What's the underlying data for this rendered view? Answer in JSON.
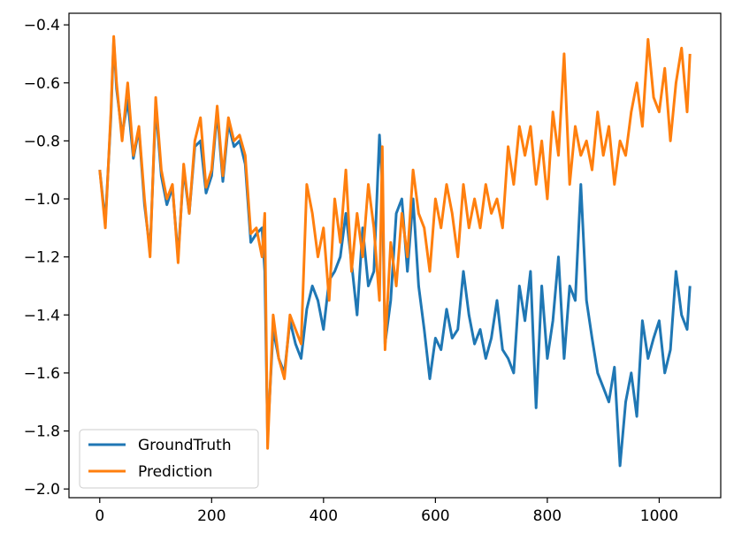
{
  "chart_data": {
    "type": "line",
    "title": "",
    "xlabel": "",
    "ylabel": "",
    "xlim": [
      -55,
      1110
    ],
    "ylim": [
      -2.03,
      -0.36
    ],
    "xticks": [
      0,
      200,
      400,
      600,
      800,
      1000
    ],
    "yticks": [
      -2.0,
      -1.8,
      -1.6,
      -1.4,
      -1.2,
      -1.0,
      -0.8,
      -0.6,
      -0.4
    ],
    "xtick_labels": [
      "0",
      "200",
      "400",
      "600",
      "800",
      "1000"
    ],
    "ytick_labels": [
      "−2.0",
      "−1.8",
      "−1.6",
      "−1.4",
      "−1.2",
      "−1.0",
      "−0.8",
      "−0.6",
      "−0.4"
    ],
    "grid": false,
    "legend_position": "lower-left",
    "series": [
      {
        "name": "GroundTruth",
        "color": "#1f77b4",
        "x": [
          0,
          10,
          20,
          25,
          30,
          40,
          50,
          60,
          70,
          80,
          90,
          100,
          110,
          120,
          130,
          140,
          150,
          160,
          170,
          180,
          190,
          200,
          210,
          220,
          230,
          240,
          250,
          260,
          270,
          280,
          290,
          295,
          300,
          310,
          320,
          330,
          340,
          350,
          360,
          370,
          380,
          390,
          400,
          410,
          420,
          430,
          440,
          450,
          460,
          470,
          480,
          490,
          500,
          505,
          510,
          520,
          530,
          540,
          550,
          560,
          570,
          580,
          590,
          600,
          610,
          620,
          630,
          640,
          650,
          660,
          670,
          680,
          690,
          700,
          710,
          720,
          730,
          740,
          750,
          760,
          770,
          780,
          790,
          800,
          810,
          820,
          830,
          840,
          850,
          860,
          870,
          880,
          890,
          900,
          910,
          920,
          930,
          940,
          950,
          960,
          970,
          980,
          990,
          1000,
          1010,
          1020,
          1030,
          1040,
          1050,
          1055
        ],
        "values": [
          -0.9,
          -1.08,
          -0.72,
          -0.45,
          -0.62,
          -0.78,
          -0.66,
          -0.86,
          -0.76,
          -1.02,
          -1.18,
          -0.68,
          -0.92,
          -1.02,
          -0.96,
          -1.2,
          -0.9,
          -1.05,
          -0.82,
          -0.8,
          -0.98,
          -0.92,
          -0.7,
          -0.94,
          -0.74,
          -0.82,
          -0.8,
          -0.88,
          -1.15,
          -1.12,
          -1.1,
          -1.25,
          -1.82,
          -1.45,
          -1.55,
          -1.6,
          -1.42,
          -1.5,
          -1.55,
          -1.38,
          -1.3,
          -1.35,
          -1.45,
          -1.28,
          -1.25,
          -1.2,
          -1.05,
          -1.22,
          -1.4,
          -1.1,
          -1.3,
          -1.25,
          -0.78,
          -0.95,
          -1.5,
          -1.35,
          -1.05,
          -1.0,
          -1.25,
          -1.0,
          -1.3,
          -1.45,
          -1.62,
          -1.48,
          -1.52,
          -1.38,
          -1.48,
          -1.45,
          -1.25,
          -1.4,
          -1.5,
          -1.45,
          -1.55,
          -1.48,
          -1.35,
          -1.52,
          -1.55,
          -1.6,
          -1.3,
          -1.42,
          -1.25,
          -1.72,
          -1.3,
          -1.55,
          -1.42,
          -1.2,
          -1.55,
          -1.3,
          -1.35,
          -0.95,
          -1.35,
          -1.48,
          -1.6,
          -1.65,
          -1.7,
          -1.58,
          -1.92,
          -1.7,
          -1.6,
          -1.75,
          -1.42,
          -1.55,
          -1.48,
          -1.42,
          -1.6,
          -1.52,
          -1.25,
          -1.4,
          -1.45,
          -1.3
        ]
      },
      {
        "name": "Prediction",
        "color": "#ff7f0e",
        "x": [
          0,
          10,
          20,
          25,
          30,
          40,
          50,
          60,
          70,
          80,
          90,
          100,
          110,
          120,
          130,
          140,
          150,
          160,
          170,
          180,
          190,
          200,
          210,
          220,
          230,
          240,
          250,
          260,
          270,
          280,
          290,
          295,
          300,
          310,
          320,
          330,
          340,
          350,
          360,
          370,
          380,
          390,
          400,
          410,
          420,
          430,
          440,
          450,
          460,
          470,
          480,
          490,
          500,
          505,
          510,
          520,
          530,
          540,
          550,
          560,
          570,
          580,
          590,
          600,
          610,
          620,
          630,
          640,
          650,
          660,
          670,
          680,
          690,
          700,
          710,
          720,
          730,
          740,
          750,
          760,
          770,
          780,
          790,
          800,
          810,
          820,
          830,
          840,
          850,
          860,
          870,
          880,
          890,
          900,
          910,
          920,
          930,
          940,
          950,
          960,
          970,
          980,
          990,
          1000,
          1010,
          1020,
          1030,
          1040,
          1050,
          1055
        ],
        "values": [
          -0.9,
          -1.1,
          -0.7,
          -0.44,
          -0.6,
          -0.8,
          -0.6,
          -0.85,
          -0.75,
          -1.0,
          -1.2,
          -0.65,
          -0.9,
          -1.0,
          -0.95,
          -1.22,
          -0.88,
          -1.05,
          -0.8,
          -0.72,
          -0.96,
          -0.9,
          -0.68,
          -0.92,
          -0.72,
          -0.8,
          -0.78,
          -0.85,
          -1.12,
          -1.1,
          -1.2,
          -1.05,
          -1.86,
          -1.4,
          -1.55,
          -1.62,
          -1.4,
          -1.45,
          -1.5,
          -0.95,
          -1.05,
          -1.2,
          -1.1,
          -1.35,
          -1.0,
          -1.15,
          -0.9,
          -1.25,
          -1.05,
          -1.2,
          -0.95,
          -1.1,
          -1.35,
          -0.82,
          -1.52,
          -1.15,
          -1.3,
          -1.05,
          -1.2,
          -0.9,
          -1.05,
          -1.1,
          -1.25,
          -1.0,
          -1.1,
          -0.95,
          -1.05,
          -1.2,
          -0.95,
          -1.1,
          -1.0,
          -1.1,
          -0.95,
          -1.05,
          -1.0,
          -1.1,
          -0.82,
          -0.95,
          -0.75,
          -0.85,
          -0.75,
          -0.95,
          -0.8,
          -1.0,
          -0.7,
          -0.85,
          -0.5,
          -0.95,
          -0.75,
          -0.85,
          -0.8,
          -0.9,
          -0.7,
          -0.85,
          -0.75,
          -0.95,
          -0.8,
          -0.85,
          -0.7,
          -0.6,
          -0.75,
          -0.45,
          -0.65,
          -0.7,
          -0.55,
          -0.8,
          -0.6,
          -0.48,
          -0.7,
          -0.5
        ]
      }
    ]
  }
}
